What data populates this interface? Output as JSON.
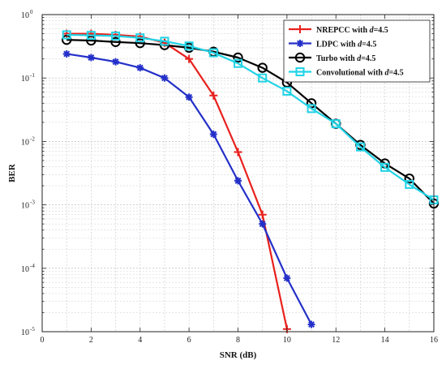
{
  "chart_data": {
    "type": "line",
    "xlabel": "SNR (dB)",
    "ylabel": "BER",
    "xlim": [
      0,
      16
    ],
    "ylim": [
      1e-05,
      1
    ],
    "yscale": "log",
    "grid": true,
    "legend_position": "top-right",
    "x_ticks": [
      "0",
      "2",
      "4",
      "6",
      "8",
      "10",
      "12",
      "14",
      "16"
    ],
    "y_ticks": [
      {
        "base": "10",
        "exp": "0",
        "value": 1
      },
      {
        "base": "10",
        "exp": "-1",
        "value": 0.1
      },
      {
        "base": "10",
        "exp": "-2",
        "value": 0.01
      },
      {
        "base": "10",
        "exp": "-3",
        "value": 0.001
      },
      {
        "base": "10",
        "exp": "-4",
        "value": 0.0001
      },
      {
        "base": "10",
        "exp": "-5",
        "value": 1e-05
      }
    ],
    "series": [
      {
        "name": "NREPCC with d=4.5",
        "legend_prefix": "NREPCC with ",
        "legend_var": "d",
        "legend_suffix": "=4.5",
        "color": "#e8201c",
        "marker": "plus",
        "x": [
          1,
          2,
          3,
          4,
          5,
          6,
          7,
          8,
          9,
          10
        ],
        "y": [
          0.5,
          0.5,
          0.48,
          0.45,
          0.36,
          0.2,
          0.053,
          0.0068,
          0.0007,
          1.1e-05
        ]
      },
      {
        "name": "LDPC with d=4.5",
        "legend_prefix": "LDPC with ",
        "legend_var": "d",
        "legend_suffix": "=4.5",
        "color": "#2430c8",
        "marker": "asterisk",
        "x": [
          1,
          2,
          3,
          4,
          5,
          6,
          7,
          8,
          9,
          10,
          11
        ],
        "y": [
          0.24,
          0.21,
          0.18,
          0.145,
          0.1,
          0.05,
          0.013,
          0.0024,
          0.0005,
          7e-05,
          1.3e-05
        ]
      },
      {
        "name": "Turbo with d=4.5",
        "legend_prefix": "Turbo with ",
        "legend_var": "d",
        "legend_suffix": "=4.5",
        "color": "#000000",
        "marker": "circle",
        "x": [
          1,
          2,
          3,
          4,
          5,
          6,
          7,
          8,
          9,
          10,
          11,
          12,
          13,
          14,
          15,
          16
        ],
        "y": [
          0.4,
          0.39,
          0.37,
          0.355,
          0.33,
          0.3,
          0.26,
          0.21,
          0.145,
          0.085,
          0.04,
          0.019,
          0.0088,
          0.0045,
          0.0026,
          0.00105
        ]
      },
      {
        "name": "Convolutional with d=4.5",
        "legend_prefix": "Convolutional with ",
        "legend_var": "d",
        "legend_suffix": "=4.5",
        "color": "#22d3e6",
        "marker": "square",
        "x": [
          1,
          2,
          3,
          4,
          5,
          6,
          7,
          8,
          9,
          10,
          11,
          12,
          13,
          14,
          15,
          16
        ],
        "y": [
          0.48,
          0.47,
          0.46,
          0.43,
          0.38,
          0.32,
          0.25,
          0.17,
          0.1,
          0.062,
          0.033,
          0.019,
          0.0082,
          0.0039,
          0.0021,
          0.0012
        ]
      }
    ]
  }
}
